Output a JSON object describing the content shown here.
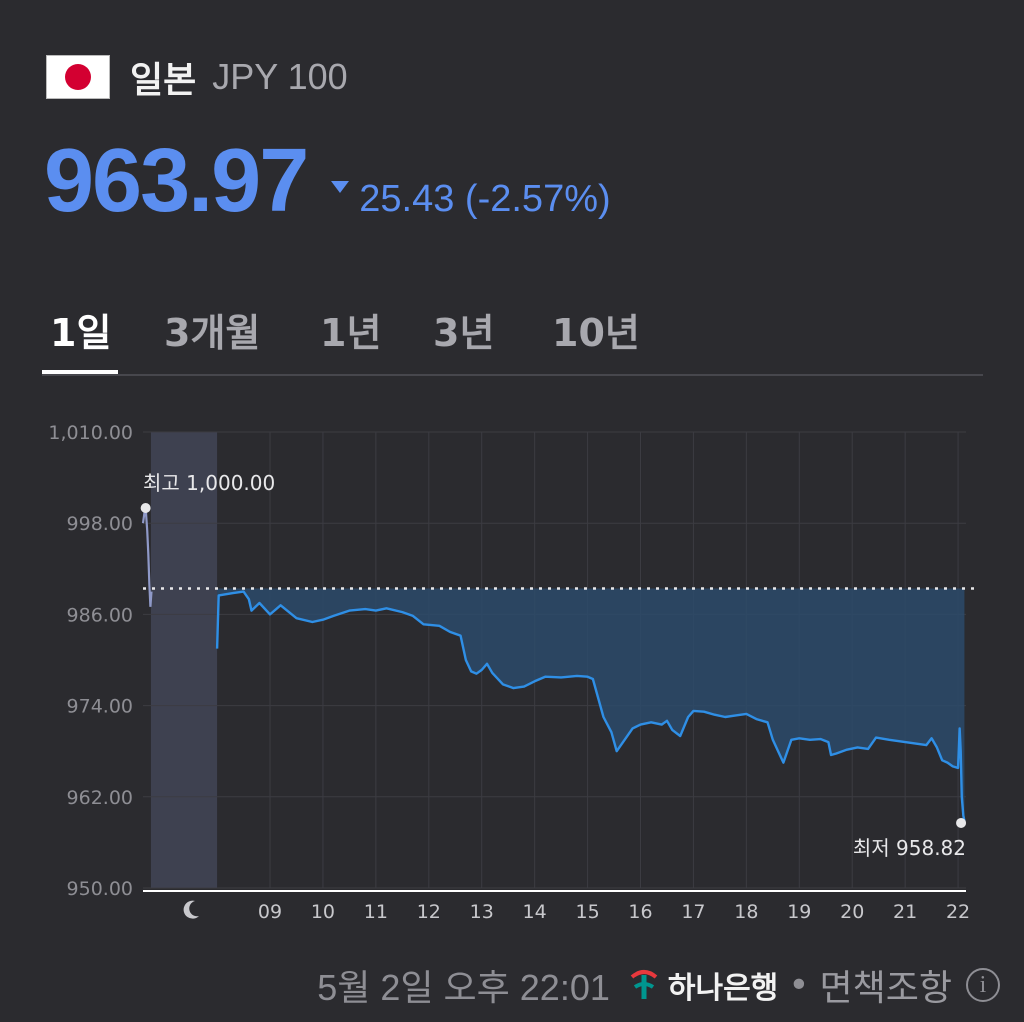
{
  "header": {
    "country": "일본",
    "currency": "JPY 100",
    "flag_icon": "japan-flag-icon"
  },
  "quote": {
    "price": "963.97",
    "change": "25.43 (-2.57%)",
    "direction": "down",
    "color": "#5b8ef0"
  },
  "tabs": [
    {
      "label": "1일",
      "active": true
    },
    {
      "label": "3개월",
      "active": false
    },
    {
      "label": "1년",
      "active": false
    },
    {
      "label": "3년",
      "active": false
    },
    {
      "label": "10년",
      "active": false
    }
  ],
  "chart_data": {
    "type": "line",
    "ylim": [
      950,
      1010
    ],
    "y_ticks": [
      "1,010.00",
      "998.00",
      "986.00",
      "974.00",
      "962.00",
      "950.00"
    ],
    "y_tick_values": [
      1010,
      998,
      986,
      974,
      962,
      950
    ],
    "x_ticks": [
      "09",
      "10",
      "11",
      "12",
      "13",
      "14",
      "15",
      "16",
      "17",
      "18",
      "19",
      "20",
      "21",
      "22"
    ],
    "x_tick_values": [
      9,
      10,
      11,
      12,
      13,
      14,
      15,
      16,
      17,
      18,
      19,
      20,
      21,
      22
    ],
    "xlim": [
      6.6,
      22.15
    ],
    "night_session": [
      6.75,
      8.0
    ],
    "night_icon": "moon-icon",
    "previous_close": 989.4,
    "high_label": "최고 1,000.00",
    "low_label": "최저 958.82",
    "high": {
      "x": 6.65,
      "y": 1000.0
    },
    "low": {
      "x": 22.0,
      "y": 958.82
    },
    "line_color": "#2f8fe6",
    "night_line_color": "#8f99c8",
    "night_series": [
      [
        6.6,
        998
      ],
      [
        6.63,
        999.5
      ],
      [
        6.65,
        1000
      ],
      [
        6.68,
        997
      ],
      [
        6.7,
        994
      ],
      [
        6.72,
        990
      ],
      [
        6.74,
        987
      ],
      [
        6.76,
        989
      ]
    ],
    "series": [
      [
        8.0,
        981.5
      ],
      [
        8.03,
        988.5
      ],
      [
        8.3,
        988.8
      ],
      [
        8.5,
        989
      ],
      [
        8.6,
        988
      ],
      [
        8.65,
        986.5
      ],
      [
        8.8,
        987.5
      ],
      [
        9.0,
        986
      ],
      [
        9.2,
        987.2
      ],
      [
        9.5,
        985.5
      ],
      [
        9.8,
        985
      ],
      [
        10.0,
        985.3
      ],
      [
        10.2,
        985.8
      ],
      [
        10.5,
        986.5
      ],
      [
        10.8,
        986.7
      ],
      [
        11.0,
        986.5
      ],
      [
        11.2,
        986.8
      ],
      [
        11.5,
        986.3
      ],
      [
        11.7,
        985.8
      ],
      [
        11.9,
        984.7
      ],
      [
        12.2,
        984.5
      ],
      [
        12.4,
        983.7
      ],
      [
        12.6,
        983.2
      ],
      [
        12.7,
        980
      ],
      [
        12.8,
        978.5
      ],
      [
        12.9,
        978.2
      ],
      [
        13.0,
        978.7
      ],
      [
        13.1,
        979.5
      ],
      [
        13.2,
        978.3
      ],
      [
        13.4,
        976.8
      ],
      [
        13.6,
        976.3
      ],
      [
        13.8,
        976.5
      ],
      [
        14.0,
        977.2
      ],
      [
        14.2,
        977.8
      ],
      [
        14.5,
        977.7
      ],
      [
        14.8,
        977.9
      ],
      [
        15.0,
        977.8
      ],
      [
        15.1,
        977.5
      ],
      [
        15.2,
        975
      ],
      [
        15.3,
        972.5
      ],
      [
        15.45,
        970.5
      ],
      [
        15.55,
        968
      ],
      [
        15.7,
        969.5
      ],
      [
        15.85,
        971
      ],
      [
        16.0,
        971.5
      ],
      [
        16.2,
        971.8
      ],
      [
        16.4,
        971.5
      ],
      [
        16.5,
        972
      ],
      [
        16.6,
        970.8
      ],
      [
        16.75,
        970
      ],
      [
        16.9,
        972.5
      ],
      [
        17.0,
        973.3
      ],
      [
        17.2,
        973.2
      ],
      [
        17.4,
        972.8
      ],
      [
        17.6,
        972.5
      ],
      [
        17.8,
        972.7
      ],
      [
        18.0,
        972.9
      ],
      [
        18.2,
        972.2
      ],
      [
        18.4,
        971.8
      ],
      [
        18.5,
        969.5
      ],
      [
        18.6,
        968
      ],
      [
        18.7,
        966.5
      ],
      [
        18.85,
        969.5
      ],
      [
        19.0,
        969.7
      ],
      [
        19.2,
        969.5
      ],
      [
        19.4,
        969.6
      ],
      [
        19.55,
        969.2
      ],
      [
        19.6,
        967.5
      ],
      [
        19.7,
        967.7
      ],
      [
        19.9,
        968.2
      ],
      [
        20.1,
        968.5
      ],
      [
        20.3,
        968.3
      ],
      [
        20.45,
        969.8
      ],
      [
        20.7,
        969.5
      ],
      [
        21.0,
        969.2
      ],
      [
        21.2,
        969.0
      ],
      [
        21.4,
        968.8
      ],
      [
        21.5,
        969.7
      ],
      [
        21.6,
        968.5
      ],
      [
        21.7,
        966.8
      ],
      [
        21.8,
        966.5
      ],
      [
        21.9,
        966.0
      ],
      [
        22.0,
        965.8
      ],
      [
        22.03,
        971
      ],
      [
        22.05,
        968
      ],
      [
        22.07,
        962
      ],
      [
        22.1,
        959.5
      ],
      [
        22.12,
        958.82
      ]
    ]
  },
  "footer": {
    "timestamp": "5월 2일 오후 22:01",
    "bank": "하나은행",
    "separator": "•",
    "disclaimer": "면책조항",
    "info": "i"
  }
}
